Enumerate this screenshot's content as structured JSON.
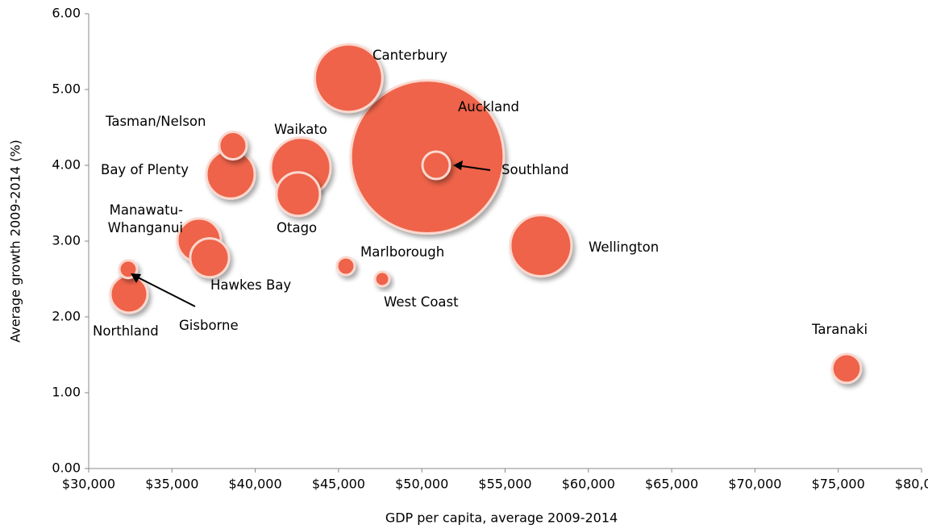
{
  "chart_data": {
    "type": "bubble",
    "x_label": "GDP per capita, average 2009-2014",
    "y_label": "Average growth 2009-2014 (%)",
    "color": "#ee6448",
    "labels": [
      "Auckland",
      "Canterbury",
      "Wellington",
      "Waikato",
      "Bay of Plenty",
      "Manawatu-Whanganui",
      "Otago",
      "Hawkes Bay",
      "Northland",
      "Taranaki",
      "Tasman/Nelson",
      "Southland",
      "Marlborough",
      "Gisborne",
      "West Coast"
    ],
    "x": [
      50330,
      45600,
      57150,
      42730,
      38520,
      36630,
      42580,
      37260,
      32420,
      75500,
      38660,
      50860,
      45440,
      32370,
      47620
    ],
    "y": [
      4.11,
      5.15,
      2.94,
      3.97,
      3.88,
      3.01,
      3.62,
      2.78,
      2.3,
      1.32,
      4.26,
      4.0,
      2.67,
      2.63,
      2.5
    ],
    "sizes": [
      90,
      17.6,
      14.4,
      13.7,
      9,
      7.3,
      7.3,
      5.8,
      5.3,
      3.2,
      2.9,
      2.9,
      1.2,
      1.2,
      0.8
    ],
    "xlim": [
      30000,
      80000
    ],
    "xticks": [
      {
        "value": 30000,
        "label": "$30,000"
      },
      {
        "value": 35000,
        "label": "$35,000"
      },
      {
        "value": 40000,
        "label": "$40,000"
      },
      {
        "value": 45000,
        "label": "$45,000"
      },
      {
        "value": 50000,
        "label": "$50,000"
      },
      {
        "value": 55000,
        "label": "$55,000"
      },
      {
        "value": 60000,
        "label": "$60,000"
      },
      {
        "value": 65000,
        "label": "$65,000"
      },
      {
        "value": 70000,
        "label": "$70,000"
      },
      {
        "value": 75000,
        "label": "$75,000"
      },
      {
        "value": 80000,
        "label": "$80,000"
      }
    ],
    "ylim": [
      0,
      6
    ],
    "yticks": [
      {
        "value": 0,
        "label": "0.00"
      },
      {
        "value": 1,
        "label": "1.00"
      },
      {
        "value": 2,
        "label": "2.00"
      },
      {
        "value": 3,
        "label": "3.00"
      },
      {
        "value": 4,
        "label": "4.00"
      },
      {
        "value": 5,
        "label": "5.00"
      },
      {
        "value": 6,
        "label": "6.00"
      }
    ],
    "grid": false
  }
}
